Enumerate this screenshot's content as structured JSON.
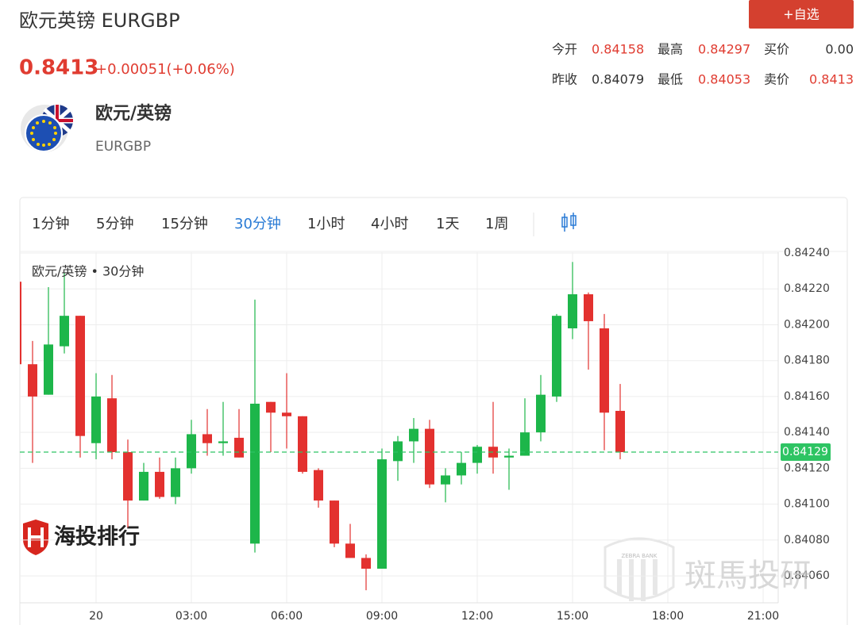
{
  "header": {
    "title": "欧元英镑 EURGBP",
    "button": "+自选",
    "price": "0.8413",
    "change": "+0.00051(+0.06%)",
    "price_color": "#e03c31"
  },
  "stats": [
    [
      {
        "label": "今开",
        "value": "0.84158",
        "color": "#e03c31"
      },
      {
        "label": "最高",
        "value": "0.84297",
        "color": "#e03c31"
      },
      {
        "label": "买价",
        "value": "0.00",
        "color": "#333333"
      }
    ],
    [
      {
        "label": "昨收",
        "value": "0.84079",
        "color": "#333333"
      },
      {
        "label": "最低",
        "value": "0.84053",
        "color": "#e03c31"
      },
      {
        "label": "卖价",
        "value": "0.8413",
        "color": "#e03c31"
      }
    ]
  ],
  "instrument": {
    "name": "欧元/英镑",
    "code": "EURGBP"
  },
  "tabs": {
    "items": [
      "1分钟",
      "5分钟",
      "15分钟",
      "30分钟",
      "1小时",
      "4小时",
      "1天",
      "1周"
    ],
    "active": 3
  },
  "watermarks": {
    "logo": "海投排行",
    "brand": "斑馬投研",
    "brand_en": "ZEBRA BANK"
  },
  "chart_data": {
    "type": "candlestick",
    "title": "欧元/英镑 • 30分钟",
    "categories": [
      null,
      null,
      null,
      null,
      null,
      "20",
      null,
      null,
      null,
      null,
      null,
      "03:00",
      null,
      null,
      null,
      null,
      null,
      "06:00",
      null,
      null,
      null,
      null,
      null,
      "09:00",
      null,
      null,
      null,
      null,
      null,
      "12:00",
      null,
      null,
      null,
      null,
      null,
      "15:00",
      null,
      null,
      null,
      null,
      null,
      "18:00",
      null,
      null,
      null,
      null,
      null,
      "21:00"
    ],
    "open": [
      0.84224,
      0.84178,
      0.84161,
      0.84188,
      0.84205,
      0.84134,
      0.84159,
      0.84129,
      0.84102,
      0.84118,
      0.84104,
      0.8412,
      0.84139,
      0.84134,
      0.84137,
      0.84078,
      0.84157,
      0.84151,
      0.84149,
      0.84119,
      0.84102,
      0.84078,
      0.8407,
      0.84064,
      0.84124,
      0.84135,
      0.84142,
      0.84111,
      0.84116,
      0.84123,
      0.84132,
      0.84126,
      0.84127,
      0.8414,
      0.8416,
      0.84198,
      0.84217,
      0.84198,
      0.84152,
      null,
      null,
      null,
      null,
      null,
      null,
      null,
      null,
      null
    ],
    "high": [
      0.84224,
      0.84191,
      0.84221,
      0.84229,
      0.84205,
      0.84173,
      0.84172,
      0.84136,
      0.84123,
      0.84126,
      0.84126,
      0.84147,
      0.84153,
      0.84157,
      0.84153,
      0.84214,
      0.84157,
      0.84173,
      0.84149,
      0.8412,
      0.84102,
      0.84089,
      0.84072,
      0.84131,
      0.84138,
      0.84148,
      0.84147,
      0.8412,
      0.84129,
      0.84133,
      0.84157,
      0.84131,
      0.84159,
      0.84172,
      0.84206,
      0.84235,
      0.84218,
      0.84206,
      0.84167,
      null,
      null,
      null,
      null,
      null,
      null,
      null,
      null,
      null
    ],
    "low": [
      0.84178,
      0.84123,
      0.84161,
      0.84184,
      0.84126,
      0.84125,
      0.84125,
      0.84087,
      0.84102,
      0.84103,
      0.841,
      0.84117,
      0.84127,
      0.84127,
      0.84126,
      0.84073,
      0.84129,
      0.84131,
      0.84117,
      0.84098,
      0.84076,
      0.8407,
      0.84052,
      0.84064,
      0.84113,
      0.84123,
      0.84109,
      0.84101,
      0.84111,
      0.84117,
      0.84117,
      0.84108,
      0.84127,
      0.84135,
      0.84157,
      0.84192,
      0.84175,
      0.8413,
      0.84125,
      null,
      null,
      null,
      null,
      null,
      null,
      null,
      null,
      null
    ],
    "close": [
      0.84178,
      0.8416,
      0.84189,
      0.84205,
      0.84138,
      0.8416,
      0.84129,
      0.84102,
      0.84118,
      0.84104,
      0.8412,
      0.84139,
      0.84134,
      0.84135,
      0.84126,
      0.84156,
      0.84151,
      0.84149,
      0.84118,
      0.84102,
      0.84078,
      0.8407,
      0.84064,
      0.84125,
      0.84135,
      0.84142,
      0.84111,
      0.84116,
      0.84123,
      0.84132,
      0.84126,
      0.84127,
      0.8414,
      0.84161,
      0.84205,
      0.84217,
      0.84202,
      0.84151,
      0.84129,
      null,
      null,
      null,
      null,
      null,
      null,
      null,
      null,
      null
    ],
    "up_color": "#1db64a",
    "down_color": "#e3312f",
    "last_value": 0.84129,
    "last_color": "#2ec463",
    "ylim": [
      0.84045,
      0.8424
    ],
    "yticks": [
      {
        "value": 0.8406,
        "label": "0.84060"
      },
      {
        "value": 0.8408,
        "label": "0.84080"
      },
      {
        "value": 0.841,
        "label": "0.84100"
      },
      {
        "value": 0.8412,
        "label": "0.84120"
      },
      {
        "value": 0.8414,
        "label": "0.84140"
      },
      {
        "value": 0.8416,
        "label": "0.84160"
      },
      {
        "value": 0.8418,
        "label": "0.84180"
      },
      {
        "value": 0.842,
        "label": "0.84200"
      },
      {
        "value": 0.8422,
        "label": "0.84220"
      },
      {
        "value": 0.8424,
        "label": "0.84240"
      }
    ],
    "grid": true
  }
}
